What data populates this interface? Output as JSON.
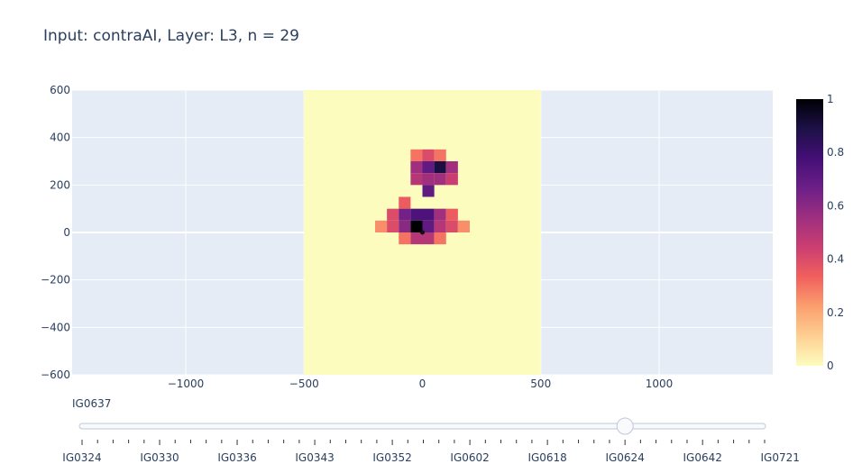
{
  "title": "Input: contraAI, Layer: L3, n = 29",
  "colors": {
    "plot_bg": "#E5ECF6",
    "grid": "#FFFFFF",
    "rect_fill": "#FCFCBE",
    "text": "#2A3F5F",
    "colorscale": [
      "#FCFDBF",
      "#FECF92",
      "#FB9F6E",
      "#F1605D",
      "#CB3E71",
      "#9E2F7F",
      "#6C1F87",
      "#440F76",
      "#1D1147",
      "#000004"
    ]
  },
  "chart_data": {
    "type": "heatmap",
    "title": "Input: contraAI, Layer: L3, n = 29",
    "xlim": [
      -1480,
      1480
    ],
    "ylim": [
      -600,
      600
    ],
    "x_ticks": [
      -1000,
      -500,
      0,
      500,
      1000
    ],
    "y_ticks": [
      600,
      400,
      200,
      0,
      -200,
      -400,
      -600
    ],
    "x_tick_labels": [
      "−1000",
      "−500",
      "0",
      "500",
      "1000"
    ],
    "y_tick_labels": [
      "600",
      "400",
      "200",
      "0",
      "−200",
      "−400",
      "−600"
    ],
    "background_rect": {
      "x": [
        -500,
        500
      ],
      "y": [
        -600,
        600
      ]
    },
    "cell_size": 50,
    "cells": [
      {
        "x": -25,
        "y": 325,
        "v": 0.3
      },
      {
        "x": 25,
        "y": 325,
        "v": 0.4
      },
      {
        "x": 75,
        "y": 325,
        "v": 0.3
      },
      {
        "x": -25,
        "y": 275,
        "v": 0.55
      },
      {
        "x": 25,
        "y": 275,
        "v": 0.7
      },
      {
        "x": 75,
        "y": 275,
        "v": 0.9
      },
      {
        "x": 125,
        "y": 275,
        "v": 0.55
      },
      {
        "x": -25,
        "y": 225,
        "v": 0.5
      },
      {
        "x": 25,
        "y": 225,
        "v": 0.55
      },
      {
        "x": 75,
        "y": 225,
        "v": 0.55
      },
      {
        "x": 125,
        "y": 225,
        "v": 0.45
      },
      {
        "x": 25,
        "y": 175,
        "v": 0.7
      },
      {
        "x": -75,
        "y": 125,
        "v": 0.35
      },
      {
        "x": -125,
        "y": 75,
        "v": 0.4
      },
      {
        "x": -75,
        "y": 75,
        "v": 0.65
      },
      {
        "x": -25,
        "y": 75,
        "v": 0.75
      },
      {
        "x": 25,
        "y": 75,
        "v": 0.75
      },
      {
        "x": 75,
        "y": 75,
        "v": 0.55
      },
      {
        "x": 125,
        "y": 75,
        "v": 0.35
      },
      {
        "x": -175,
        "y": 25,
        "v": 0.25
      },
      {
        "x": -125,
        "y": 25,
        "v": 0.4
      },
      {
        "x": -75,
        "y": 25,
        "v": 0.6
      },
      {
        "x": -25,
        "y": 25,
        "v": 1.0
      },
      {
        "x": 25,
        "y": 25,
        "v": 0.7
      },
      {
        "x": 75,
        "y": 25,
        "v": 0.5
      },
      {
        "x": 125,
        "y": 25,
        "v": 0.4
      },
      {
        "x": 175,
        "y": 25,
        "v": 0.25
      },
      {
        "x": -75,
        "y": -25,
        "v": 0.3
      },
      {
        "x": -25,
        "y": -25,
        "v": 0.5
      },
      {
        "x": 25,
        "y": -25,
        "v": 0.5
      },
      {
        "x": 75,
        "y": -25,
        "v": 0.3
      }
    ],
    "marker_point": {
      "x": 0,
      "y": 0
    },
    "colorbar": {
      "range": [
        0,
        1
      ],
      "ticks": [
        0,
        0.2,
        0.4,
        0.6,
        0.8,
        1
      ],
      "tick_labels": [
        "0",
        "0.2",
        "0.4",
        "0.6",
        "0.8",
        "1"
      ]
    }
  },
  "slider": {
    "current_label": "IG0637",
    "active_index": 35,
    "step_count": 45,
    "labels": [
      "IG0324",
      "IG0330",
      "IG0336",
      "IG0343",
      "IG0352",
      "IG0602",
      "IG0618",
      "IG0624",
      "IG0642",
      "IG0721"
    ]
  }
}
